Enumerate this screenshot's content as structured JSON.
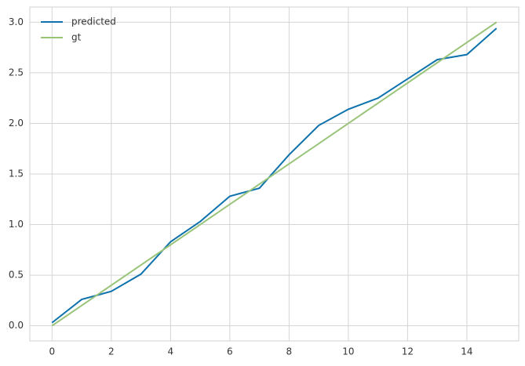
{
  "chart_data": {
    "type": "line",
    "x": [
      0,
      1,
      2,
      3,
      4,
      5,
      6,
      7,
      8,
      9,
      10,
      11,
      12,
      13,
      14,
      15
    ],
    "series": [
      {
        "name": "predicted",
        "color": "#0e72ad",
        "values": [
          0.03,
          0.26,
          0.34,
          0.51,
          0.83,
          1.03,
          1.28,
          1.36,
          1.69,
          1.98,
          2.14,
          2.25,
          2.44,
          2.63,
          2.68,
          2.94
        ]
      },
      {
        "name": "gt",
        "color": "#99c47a",
        "values": [
          0,
          0.2,
          0.4,
          0.6,
          0.8,
          1,
          1.2,
          1.4,
          1.6,
          1.8,
          2,
          2.2,
          2.4,
          2.6,
          2.8,
          3
        ]
      }
    ],
    "xlim": [
      -0.75,
      15.75
    ],
    "xticks": [
      0,
      2,
      4,
      6,
      8,
      10,
      12,
      14
    ],
    "ylim": [
      -0.15,
      3.15
    ],
    "yticks": [
      {
        "value": 0,
        "label": "0.0"
      },
      0.5,
      {
        "value": 1,
        "label": "1.0"
      },
      1.5,
      {
        "value": 2,
        "label": "2.0"
      },
      2.5,
      {
        "value": 3,
        "label": "3.0"
      }
    ],
    "grid": true,
    "legend": "upper-left"
  }
}
